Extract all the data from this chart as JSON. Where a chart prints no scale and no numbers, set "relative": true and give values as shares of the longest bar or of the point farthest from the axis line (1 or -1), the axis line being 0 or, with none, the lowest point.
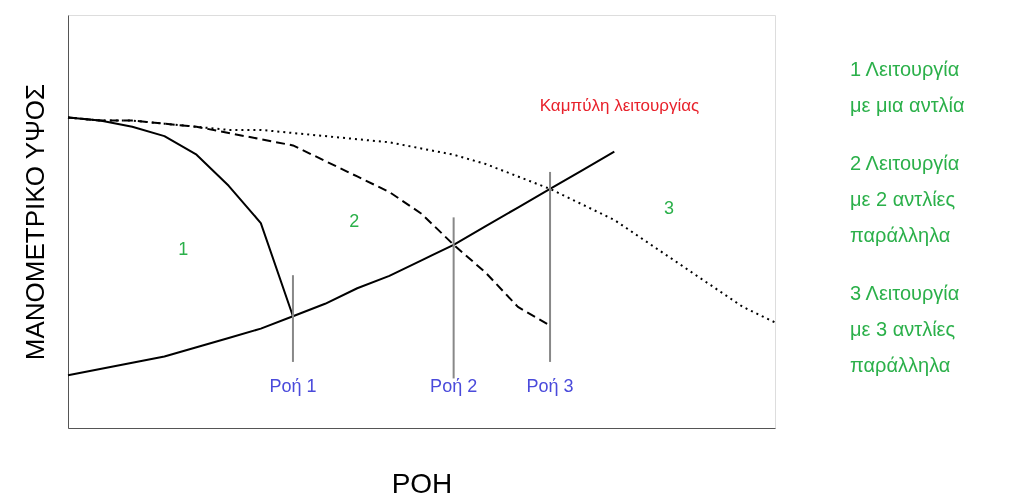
{
  "chart_data": {
    "type": "line",
    "relative": true,
    "xlabel": "ΡΟΗ",
    "ylabel": "ΜΑΝΟΜΕΤΡΙΚΟ ΥΨΟΣ",
    "categories": [
      null,
      null,
      null,
      null,
      null,
      null,
      null,
      null,
      null,
      null,
      null,
      null,
      null,
      null,
      null,
      null,
      null,
      null,
      null,
      null,
      null,
      null,
      null
    ],
    "grid": false,
    "marker": "none",
    "series": [
      {
        "color": "#000000",
        "line_style": "solid",
        "values": [
          1.0,
          0.99,
          0.97,
          0.94,
          0.88,
          0.78,
          0.66,
          0.36,
          null,
          null,
          null,
          null,
          null,
          null,
          null,
          null,
          null,
          null,
          null,
          null,
          null,
          null,
          null
        ]
      },
      {
        "color": "#000000",
        "line_style": "dashed",
        "values": [
          1.0,
          0.99,
          0.99,
          0.98,
          0.97,
          0.95,
          0.93,
          0.91,
          0.86,
          0.81,
          0.76,
          0.69,
          0.59,
          0.5,
          0.39,
          0.33,
          null,
          null,
          null,
          null,
          null,
          null,
          null
        ]
      },
      {
        "color": "#000000",
        "line_style": "dotted",
        "values": [
          1.0,
          0.99,
          0.99,
          0.98,
          0.97,
          0.96,
          0.96,
          0.95,
          0.94,
          0.93,
          0.92,
          0.9,
          0.88,
          0.85,
          0.81,
          0.77,
          0.72,
          0.67,
          0.6,
          0.53,
          0.46,
          0.39,
          0.34
        ]
      },
      {
        "color": "#000000",
        "line_style": "solid",
        "values": [
          0.17,
          0.19,
          0.21,
          0.23,
          0.26,
          0.29,
          0.32,
          0.36,
          0.4,
          0.45,
          0.49,
          0.54,
          0.59,
          0.65,
          0.71,
          0.77,
          0.83,
          0.89,
          null,
          null,
          null,
          null,
          null
        ]
      }
    ],
    "annotations": [
      "Καμπύλη λειτουργίας",
      "1",
      "2",
      "3",
      "Ροή 1",
      "Ροή 2",
      "Ροή 3",
      "1 Λειτουργία με μια αντλία",
      "2 Λειτουργία με 2 αντλίες παράλληλα",
      "3 Λειτουργία με 3 αντλίες παράλληλα"
    ]
  }
}
